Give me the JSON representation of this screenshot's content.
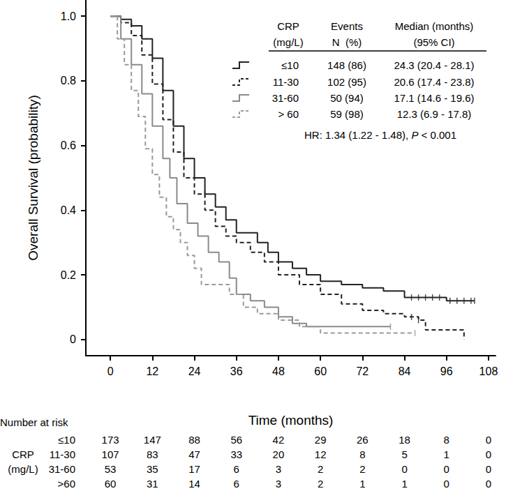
{
  "chart_data": {
    "type": "line",
    "x_label": "Time (months)",
    "y_label": "Overall Survival (probability)",
    "xlim": [
      -7,
      110
    ],
    "xticks": [
      0,
      12,
      24,
      36,
      48,
      60,
      72,
      84,
      96,
      108
    ],
    "ylim": [
      -0.05,
      1.05
    ],
    "yticks": [
      0,
      0.2,
      0.4,
      0.6,
      0.8,
      {
        "value": 1,
        "label": "1.0"
      }
    ],
    "grid": false,
    "table_header": [
      [
        "CRP",
        "(mg/L)"
      ],
      [
        "Events",
        "N  (%)"
      ],
      [
        "Median (months)",
        "(95% CI)"
      ]
    ],
    "annotation": [
      "HR: 1.34 (1.22 - 1.48), ",
      "P",
      " < 0.001"
    ],
    "at_risk_title": "Number at risk",
    "at_risk_group": [
      "CRP",
      "(mg/L)"
    ],
    "series": [
      {
        "name": "≤10",
        "at_risk_label": "≤10",
        "color": "#222222",
        "line_style": "solid",
        "events": "148 (86)",
        "median": "24.3 (20.4 - 28.1)",
        "x": [
          0,
          3,
          6,
          9,
          12,
          15,
          18,
          21,
          24,
          27,
          30,
          33,
          36,
          40,
          42,
          45,
          48,
          52,
          56,
          60,
          66,
          72,
          78,
          84,
          90,
          96,
          104
        ],
        "values": [
          1.0,
          0.99,
          0.97,
          0.93,
          0.87,
          0.77,
          0.66,
          0.56,
          0.5,
          0.45,
          0.41,
          0.37,
          0.33,
          0.33,
          0.3,
          0.27,
          0.24,
          0.22,
          0.2,
          0.18,
          0.17,
          0.16,
          0.15,
          0.13,
          0.13,
          0.12,
          0.12
        ],
        "censored": [
          [
            27,
            0.45
          ],
          [
            86,
            0.13
          ],
          [
            88,
            0.13
          ],
          [
            90,
            0.13
          ],
          [
            92,
            0.13
          ],
          [
            94,
            0.13
          ],
          [
            97,
            0.12
          ],
          [
            99,
            0.12
          ],
          [
            101,
            0.12
          ],
          [
            103,
            0.12
          ],
          [
            104,
            0.12
          ]
        ],
        "at_risk": [
          173,
          147,
          88,
          56,
          42,
          29,
          26,
          18,
          8,
          0
        ]
      },
      {
        "name": "11-30",
        "at_risk_label": "11-30",
        "color": "#222222",
        "line_style": "dashed",
        "events": "102 (95)",
        "median": "20.6 (17.4 - 23.8)",
        "x": [
          0,
          3,
          6,
          9,
          12,
          15,
          18,
          21,
          24,
          27,
          30,
          33,
          36,
          40,
          44,
          48,
          54,
          60,
          66,
          72,
          78,
          84,
          88,
          90,
          100,
          101
        ],
        "values": [
          1.0,
          0.98,
          0.94,
          0.88,
          0.79,
          0.68,
          0.58,
          0.5,
          0.45,
          0.4,
          0.35,
          0.32,
          0.3,
          0.27,
          0.24,
          0.2,
          0.17,
          0.14,
          0.11,
          0.09,
          0.08,
          0.07,
          0.06,
          0.03,
          0.03,
          0.0
        ],
        "censored": [
          [
            86,
            0.07
          ],
          [
            88,
            0.06
          ]
        ],
        "at_risk": [
          107,
          83,
          47,
          33,
          20,
          12,
          8,
          5,
          1,
          0
        ]
      },
      {
        "name": "31-60",
        "at_risk_label": "31-60",
        "color": "#8a8a8a",
        "line_style": "solid",
        "events": "50 (94)",
        "median": "17.1 (14.6 - 19.6)",
        "x": [
          0,
          3,
          6,
          9,
          12,
          15,
          17,
          19,
          22,
          25,
          28,
          31,
          34,
          36,
          40,
          44,
          48,
          52,
          56,
          80
        ],
        "values": [
          1.0,
          0.93,
          0.85,
          0.76,
          0.66,
          0.56,
          0.5,
          0.42,
          0.36,
          0.32,
          0.27,
          0.24,
          0.19,
          0.14,
          0.12,
          0.1,
          0.07,
          0.05,
          0.04,
          0.04
        ],
        "censored": [
          [
            80,
            0.04
          ]
        ],
        "at_risk": [
          53,
          35,
          17,
          6,
          3,
          2,
          2,
          0,
          0,
          0
        ]
      },
      {
        "name": "> 60",
        "at_risk_label": ">60",
        "color": "#9a9a9a",
        "line_style": "dashed",
        "events": "59 (98)",
        "median": "12.3 (6.9 - 17.8)",
        "x": [
          0,
          2,
          4,
          6,
          8,
          10,
          12,
          14,
          16,
          18,
          20,
          22,
          24,
          26,
          32,
          34,
          38,
          42,
          48,
          54,
          60,
          87
        ],
        "values": [
          1.0,
          0.93,
          0.85,
          0.77,
          0.69,
          0.59,
          0.51,
          0.44,
          0.38,
          0.34,
          0.3,
          0.26,
          0.22,
          0.17,
          0.17,
          0.14,
          0.1,
          0.08,
          0.06,
          0.04,
          0.02,
          0.02
        ],
        "censored": [
          [
            87,
            0.02
          ]
        ],
        "at_risk": [
          60,
          31,
          14,
          6,
          3,
          2,
          1,
          1,
          0,
          0
        ]
      }
    ]
  }
}
